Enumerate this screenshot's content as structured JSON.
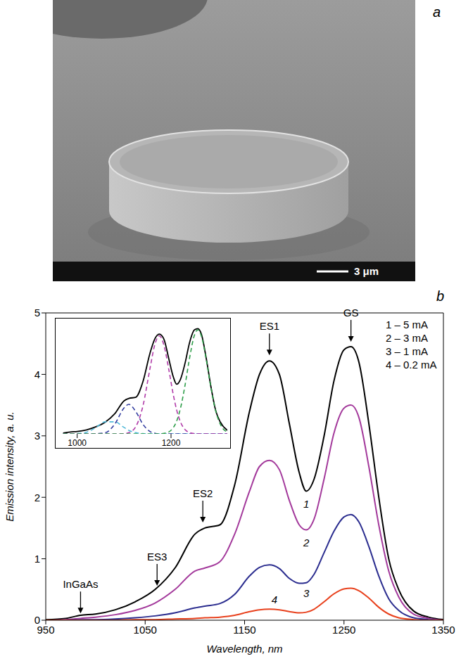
{
  "image": {
    "panel_label": "a",
    "scale_bar": "3 μm"
  },
  "chart_data": [
    {
      "type": "line",
      "panel_label": "b",
      "xlabel": "Wavelength, nm",
      "ylabel": "Emission intensity, a. u.",
      "x": [
        950,
        970,
        985,
        1000,
        1020,
        1040,
        1060,
        1080,
        1100,
        1110,
        1125,
        1140,
        1155,
        1165,
        1175,
        1185,
        1195,
        1205,
        1212,
        1220,
        1230,
        1240,
        1250,
        1257,
        1265,
        1275,
        1285,
        1295,
        1305,
        1320,
        1335,
        1350
      ],
      "series": [
        {
          "name": "1 – 5 mA",
          "color": "#000000",
          "values": [
            0.01,
            0.03,
            0.08,
            0.1,
            0.17,
            0.3,
            0.5,
            0.85,
            1.4,
            1.5,
            1.55,
            2.2,
            3.4,
            4.0,
            4.22,
            4.0,
            3.2,
            2.4,
            2.1,
            2.3,
            3.0,
            3.9,
            4.4,
            4.45,
            4.2,
            3.2,
            2.0,
            1.0,
            0.5,
            0.15,
            0.05,
            0.01
          ]
        },
        {
          "name": "2 – 3 mA",
          "color": "#a3399b",
          "values": [
            0.0,
            0.01,
            0.03,
            0.05,
            0.09,
            0.16,
            0.28,
            0.5,
            0.8,
            0.85,
            0.95,
            1.4,
            2.1,
            2.5,
            2.6,
            2.45,
            1.95,
            1.55,
            1.47,
            1.65,
            2.3,
            3.05,
            3.45,
            3.5,
            3.3,
            2.5,
            1.55,
            0.8,
            0.38,
            0.1,
            0.03,
            0.0
          ]
        },
        {
          "name": "3 – 1 mA",
          "color": "#2b2d8f",
          "values": [
            0,
            0,
            0.01,
            0.01,
            0.02,
            0.04,
            0.07,
            0.12,
            0.2,
            0.23,
            0.27,
            0.42,
            0.72,
            0.86,
            0.9,
            0.84,
            0.68,
            0.6,
            0.61,
            0.75,
            1.1,
            1.45,
            1.68,
            1.72,
            1.6,
            1.2,
            0.72,
            0.35,
            0.16,
            0.04,
            0.01,
            0
          ]
        },
        {
          "name": "4 – 0.2 mA",
          "color": "#e8401c",
          "values": [
            0,
            0,
            0,
            0,
            0,
            0.01,
            0.01,
            0.02,
            0.03,
            0.04,
            0.05,
            0.08,
            0.14,
            0.17,
            0.18,
            0.17,
            0.14,
            0.12,
            0.13,
            0.18,
            0.3,
            0.43,
            0.51,
            0.52,
            0.48,
            0.36,
            0.21,
            0.1,
            0.04,
            0.01,
            0,
            0
          ]
        }
      ],
      "xlim": [
        950,
        1350
      ],
      "xticks": [
        950,
        1050,
        1150,
        1250,
        1350
      ],
      "ylim": [
        0,
        5
      ],
      "yticks": [
        0,
        1,
        2,
        3,
        4,
        5
      ],
      "grid": false,
      "legend": "upper right",
      "annotations": [
        {
          "text": "GS",
          "x": 1257,
          "y": 4.52
        },
        {
          "text": "ES1",
          "x": 1175,
          "y": 4.3
        },
        {
          "text": "ES2",
          "x": 1108,
          "y": 1.58
        },
        {
          "text": "ES3",
          "x": 1062,
          "y": 0.55
        },
        {
          "text": "InGaAs",
          "x": 985,
          "y": 0.1
        }
      ],
      "curve_labels": [
        {
          "text": "1",
          "x": 1212,
          "y": 1.88
        },
        {
          "text": "2",
          "x": 1212,
          "y": 1.25
        },
        {
          "text": "3",
          "x": 1212,
          "y": 0.42
        },
        {
          "text": "4",
          "x": 1180,
          "y": 0.32
        }
      ]
    },
    {
      "type": "line",
      "x": [
        970,
        985,
        1000,
        1020,
        1040,
        1060,
        1080,
        1100,
        1110,
        1125,
        1140,
        1155,
        1165,
        1175,
        1185,
        1195,
        1205,
        1212,
        1220,
        1230,
        1240,
        1250,
        1257,
        1265,
        1275,
        1285,
        1295,
        1305,
        1320
      ],
      "series": [
        {
          "color": "#000000",
          "line_style": "solid",
          "values": [
            0.03,
            0.08,
            0.1,
            0.17,
            0.3,
            0.5,
            0.85,
            1.4,
            1.5,
            1.55,
            2.2,
            3.4,
            4.0,
            4.22,
            4.0,
            3.2,
            2.4,
            2.1,
            2.3,
            3.0,
            3.9,
            4.4,
            4.45,
            4.2,
            3.2,
            2.0,
            1.0,
            0.5,
            0.15
          ]
        },
        {
          "color": "#4fb8d8",
          "line_style": "dashed",
          "values": [
            0,
            0,
            0.01,
            0.07,
            0.27,
            0.51,
            0.51,
            0.27,
            0.15,
            0.05,
            0.01,
            0,
            0,
            0,
            0,
            0,
            0,
            0,
            0,
            0,
            0,
            0,
            0,
            0,
            0,
            0,
            0,
            0,
            0
          ]
        },
        {
          "color": "#2f3a9e",
          "line_style": "dashed",
          "values": [
            0,
            0,
            0,
            0,
            0.01,
            0.05,
            0.41,
            1.1,
            1.25,
            0.94,
            0.41,
            0.1,
            0.03,
            0,
            0,
            0,
            0,
            0,
            0,
            0,
            0,
            0,
            0,
            0,
            0,
            0,
            0,
            0,
            0
          ]
        },
        {
          "color": "#b03aa8",
          "line_style": "dashed",
          "values": [
            0,
            0,
            0,
            0,
            0,
            0,
            0,
            0.01,
            0.05,
            0.31,
            1.17,
            2.75,
            3.74,
            4.15,
            3.74,
            2.75,
            1.64,
            1.01,
            0.51,
            0.18,
            0.05,
            0.01,
            0,
            0,
            0,
            0,
            0,
            0,
            0
          ]
        },
        {
          "color": "#2e9e4a",
          "line_style": "dashed",
          "values": [
            0,
            0,
            0,
            0,
            0,
            0,
            0,
            0,
            0,
            0,
            0,
            0,
            0,
            0,
            0.02,
            0.08,
            0.27,
            0.54,
            1.07,
            2.07,
            3.26,
            4.18,
            4.4,
            4.12,
            3.15,
            1.96,
            0.99,
            0.41,
            0.07
          ]
        }
      ],
      "xlim": [
        960,
        1320
      ],
      "xticks": [
        1000,
        1200
      ],
      "ylim": [
        0,
        4.7
      ],
      "tick_labels": "x",
      "grid": false
    }
  ]
}
